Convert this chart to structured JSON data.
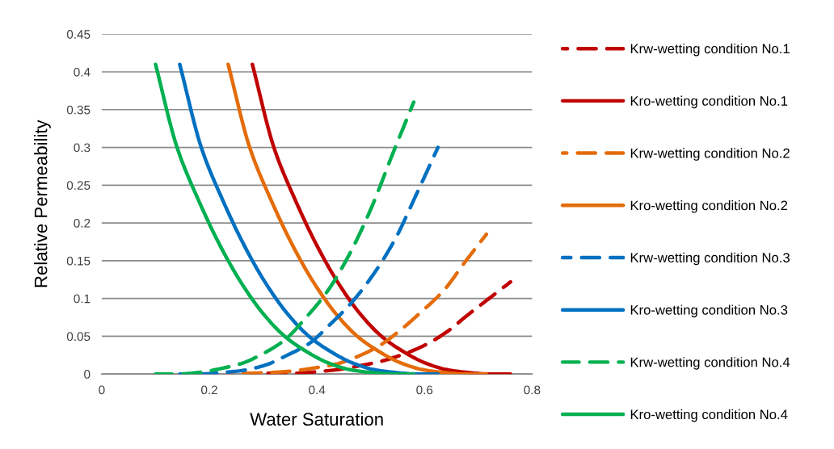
{
  "chart_data": {
    "type": "line",
    "xlabel": "Water Saturation",
    "ylabel": "Relative Permeability",
    "xlim": [
      0,
      0.8
    ],
    "xticks": [
      0,
      0.2,
      0.4,
      0.6,
      0.8
    ],
    "ylim": [
      0,
      0.45
    ],
    "yticks": [
      0,
      0.05,
      0.1,
      0.15,
      0.2,
      0.25,
      0.3,
      0.35,
      0.4,
      0.45
    ],
    "grid": "y",
    "legend": "right",
    "marker": "none",
    "series": [
      {
        "name": "Krw-wetting condition No.1",
        "color": "#c00000",
        "line_style": "dashed",
        "x": [
          0.28,
          0.32,
          0.36,
          0.4,
          0.44,
          0.48,
          0.52,
          0.56,
          0.6,
          0.64,
          0.68,
          0.72,
          0.76
        ],
        "values": [
          0,
          0.001,
          0.001,
          0.003,
          0.006,
          0.011,
          0.017,
          0.026,
          0.038,
          0.055,
          0.078,
          0.1,
          0.122
        ]
      },
      {
        "name": "Kro-wetting condition No.1",
        "color": "#c00000",
        "line_style": "solid",
        "x": [
          0.28,
          0.32,
          0.36,
          0.4,
          0.44,
          0.48,
          0.52,
          0.56,
          0.6,
          0.64,
          0.68,
          0.72,
          0.76
        ],
        "values": [
          0.41,
          0.3,
          0.23,
          0.17,
          0.12,
          0.08,
          0.05,
          0.03,
          0.015,
          0.006,
          0.002,
          0,
          0
        ]
      },
      {
        "name": "Krw-wetting condition No.2",
        "color": "#e46c0a",
        "line_style": "dashed",
        "x": [
          0.235,
          0.275,
          0.315,
          0.355,
          0.395,
          0.435,
          0.475,
          0.515,
          0.555,
          0.595,
          0.635,
          0.675,
          0.715
        ],
        "values": [
          0,
          0.001,
          0.002,
          0.004,
          0.008,
          0.013,
          0.023,
          0.037,
          0.058,
          0.083,
          0.11,
          0.148,
          0.185
        ]
      },
      {
        "name": "Kro-wetting condition No.2",
        "color": "#e46c0a",
        "line_style": "solid",
        "x": [
          0.235,
          0.275,
          0.315,
          0.355,
          0.395,
          0.435,
          0.475,
          0.515,
          0.555,
          0.595,
          0.635,
          0.675,
          0.715
        ],
        "values": [
          0.41,
          0.3,
          0.23,
          0.17,
          0.12,
          0.08,
          0.05,
          0.03,
          0.015,
          0.006,
          0.002,
          0,
          0
        ]
      },
      {
        "name": "Krw-wetting condition No.3",
        "color": "#0070c0",
        "line_style": "dashed",
        "x": [
          0.145,
          0.185,
          0.225,
          0.265,
          0.305,
          0.345,
          0.385,
          0.425,
          0.465,
          0.505,
          0.545,
          0.585,
          0.625
        ],
        "values": [
          0,
          0,
          0.002,
          0.005,
          0.012,
          0.025,
          0.04,
          0.066,
          0.095,
          0.132,
          0.178,
          0.238,
          0.3
        ]
      },
      {
        "name": "Kro-wetting condition No.3",
        "color": "#0070c0",
        "line_style": "solid",
        "x": [
          0.145,
          0.185,
          0.225,
          0.265,
          0.305,
          0.345,
          0.385,
          0.425,
          0.465,
          0.505,
          0.545,
          0.585,
          0.625
        ],
        "values": [
          0.41,
          0.3,
          0.23,
          0.17,
          0.12,
          0.08,
          0.05,
          0.03,
          0.015,
          0.006,
          0.002,
          0,
          0
        ]
      },
      {
        "name": "Krw-wetting condition No.4",
        "color": "#00b050",
        "line_style": "dashed",
        "x": [
          0.1,
          0.14,
          0.18,
          0.22,
          0.26,
          0.3,
          0.34,
          0.38,
          0.42,
          0.46,
          0.5,
          0.54,
          0.58
        ],
        "values": [
          0,
          0,
          0.002,
          0.007,
          0.014,
          0.027,
          0.045,
          0.075,
          0.11,
          0.158,
          0.218,
          0.29,
          0.36
        ]
      },
      {
        "name": "Kro-wetting condition No.4",
        "color": "#00b050",
        "line_style": "solid",
        "x": [
          0.1,
          0.14,
          0.18,
          0.22,
          0.26,
          0.3,
          0.34,
          0.38,
          0.42,
          0.46,
          0.5,
          0.54,
          0.58
        ],
        "values": [
          0.41,
          0.3,
          0.23,
          0.17,
          0.12,
          0.08,
          0.05,
          0.03,
          0.015,
          0.006,
          0.002,
          0,
          0
        ]
      }
    ]
  }
}
